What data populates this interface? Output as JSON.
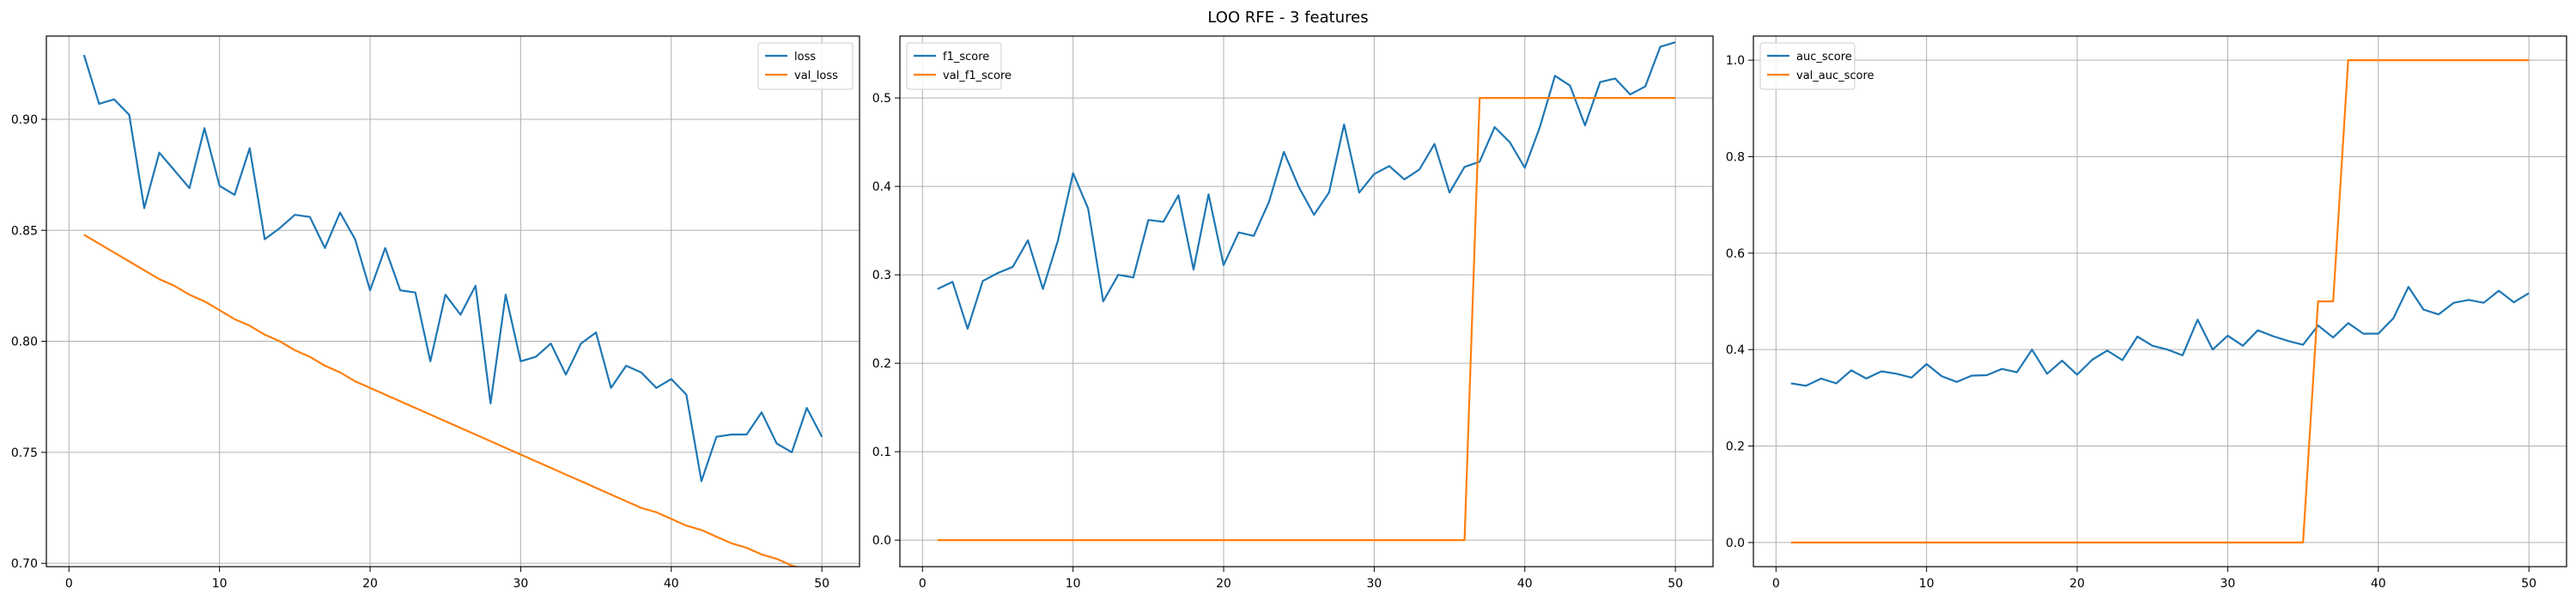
{
  "figure_title": "LOO RFE - 3 features",
  "colors": {
    "train": "#1f77b4",
    "val": "#ff7f0e",
    "grid": "#b0b0b0",
    "axes": "#000000"
  },
  "chart_data": [
    {
      "type": "line",
      "x_ticks": [
        0,
        10,
        20,
        30,
        40,
        50
      ],
      "y_ticks": [
        0.7,
        0.75,
        0.8,
        0.85,
        0.9
      ],
      "y_tick_labels": [
        "0.70",
        "0.75",
        "0.80",
        "0.85",
        "0.90"
      ],
      "xlim": [
        -1.5,
        52.5
      ],
      "ylim": [
        0.6985,
        0.9375
      ],
      "grid": true,
      "legend_position": "top-right",
      "series": [
        {
          "name": "loss",
          "color": "#1f77b4",
          "x": [
            1,
            2,
            3,
            4,
            5,
            6,
            7,
            8,
            9,
            10,
            11,
            12,
            13,
            14,
            15,
            16,
            17,
            18,
            19,
            20,
            21,
            22,
            23,
            24,
            25,
            26,
            27,
            28,
            29,
            30,
            31,
            32,
            33,
            34,
            35,
            36,
            37,
            38,
            39,
            40,
            41,
            42,
            43,
            44,
            45,
            46,
            47,
            48,
            49,
            50
          ],
          "y": [
            0.929,
            0.907,
            0.909,
            0.902,
            0.86,
            0.885,
            0.877,
            0.869,
            0.896,
            0.87,
            0.866,
            0.887,
            0.846,
            0.851,
            0.857,
            0.856,
            0.842,
            0.858,
            0.846,
            0.823,
            0.842,
            0.823,
            0.822,
            0.791,
            0.821,
            0.812,
            0.825,
            0.772,
            0.821,
            0.791,
            0.793,
            0.799,
            0.785,
            0.799,
            0.804,
            0.779,
            0.789,
            0.786,
            0.779,
            0.783,
            0.776,
            0.737,
            0.757,
            0.758,
            0.758,
            0.768,
            0.754,
            0.75,
            0.77,
            0.757
          ]
        },
        {
          "name": "val_loss",
          "color": "#ff7f0e",
          "x": [
            1,
            2,
            3,
            4,
            5,
            6,
            7,
            8,
            9,
            10,
            11,
            12,
            13,
            14,
            15,
            16,
            17,
            18,
            19,
            20,
            21,
            22,
            23,
            24,
            25,
            26,
            27,
            28,
            29,
            30,
            31,
            32,
            33,
            34,
            35,
            36,
            37,
            38,
            39,
            40,
            41,
            42,
            43,
            44,
            45,
            46,
            47,
            48,
            49,
            50
          ],
          "y": [
            0.848,
            0.844,
            0.84,
            0.836,
            0.832,
            0.828,
            0.825,
            0.821,
            0.818,
            0.814,
            0.81,
            0.807,
            0.803,
            0.8,
            0.796,
            0.793,
            0.789,
            0.786,
            0.782,
            0.779,
            0.776,
            0.773,
            0.77,
            0.767,
            0.764,
            0.761,
            0.758,
            0.755,
            0.752,
            0.749,
            0.746,
            0.743,
            0.74,
            0.737,
            0.734,
            0.731,
            0.728,
            0.725,
            0.723,
            0.72,
            0.717,
            0.715,
            0.712,
            0.709,
            0.707,
            0.704,
            0.702,
            0.699,
            0.697,
            0.694
          ]
        }
      ]
    },
    {
      "type": "line",
      "x_ticks": [
        0,
        10,
        20,
        30,
        40,
        50
      ],
      "y_ticks": [
        0.0,
        0.1,
        0.2,
        0.3,
        0.4,
        0.5
      ],
      "y_tick_labels": [
        "0.0",
        "0.1",
        "0.2",
        "0.3",
        "0.4",
        "0.5"
      ],
      "xlim": [
        -1.5,
        52.5
      ],
      "ylim": [
        -0.03,
        0.57
      ],
      "grid": true,
      "legend_position": "top-left",
      "series": [
        {
          "name": "f1_score",
          "color": "#1f77b4",
          "x": [
            1,
            2,
            3,
            4,
            5,
            6,
            7,
            8,
            9,
            10,
            11,
            12,
            13,
            14,
            15,
            16,
            17,
            18,
            19,
            20,
            21,
            22,
            23,
            24,
            25,
            26,
            27,
            28,
            29,
            30,
            31,
            32,
            33,
            34,
            35,
            36,
            37,
            38,
            39,
            40,
            41,
            42,
            43,
            44,
            45,
            46,
            47,
            48,
            49,
            50
          ],
          "y": [
            0.284,
            0.292,
            0.239,
            0.293,
            0.302,
            0.309,
            0.339,
            0.284,
            0.339,
            0.415,
            0.375,
            0.27,
            0.3,
            0.297,
            0.362,
            0.36,
            0.39,
            0.306,
            0.391,
            0.311,
            0.348,
            0.344,
            0.382,
            0.439,
            0.399,
            0.368,
            0.393,
            0.47,
            0.393,
            0.414,
            0.423,
            0.408,
            0.419,
            0.448,
            0.393,
            0.422,
            0.428,
            0.467,
            0.45,
            0.421,
            0.467,
            0.525,
            0.514,
            0.469,
            0.518,
            0.522,
            0.504,
            0.513,
            0.558,
            0.563
          ]
        },
        {
          "name": "val_f1_score",
          "color": "#ff7f0e",
          "x": [
            1,
            2,
            3,
            4,
            5,
            6,
            7,
            8,
            9,
            10,
            11,
            12,
            13,
            14,
            15,
            16,
            17,
            18,
            19,
            20,
            21,
            22,
            23,
            24,
            25,
            26,
            27,
            28,
            29,
            30,
            31,
            32,
            33,
            34,
            35,
            36,
            37,
            38,
            39,
            40,
            41,
            42,
            43,
            44,
            45,
            46,
            47,
            48,
            49,
            50
          ],
          "y": [
            0,
            0,
            0,
            0,
            0,
            0,
            0,
            0,
            0,
            0,
            0,
            0,
            0,
            0,
            0,
            0,
            0,
            0,
            0,
            0,
            0,
            0,
            0,
            0,
            0,
            0,
            0,
            0,
            0,
            0,
            0,
            0,
            0,
            0,
            0,
            0,
            0.5,
            0.5,
            0.5,
            0.5,
            0.5,
            0.5,
            0.5,
            0.5,
            0.5,
            0.5,
            0.5,
            0.5,
            0.5,
            0.5
          ]
        }
      ]
    },
    {
      "type": "line",
      "x_ticks": [
        0,
        10,
        20,
        30,
        40,
        50
      ],
      "y_ticks": [
        0.0,
        0.2,
        0.4,
        0.6,
        0.8,
        1.0
      ],
      "y_tick_labels": [
        "0.0",
        "0.2",
        "0.4",
        "0.6",
        "0.8",
        "1.0"
      ],
      "xlim": [
        -1.5,
        52.5
      ],
      "ylim": [
        -0.05,
        1.05
      ],
      "grid": true,
      "legend_position": "top-left",
      "series": [
        {
          "name": "auc_score",
          "color": "#1f77b4",
          "x": [
            1,
            2,
            3,
            4,
            5,
            6,
            7,
            8,
            9,
            10,
            11,
            12,
            13,
            14,
            15,
            16,
            17,
            18,
            19,
            20,
            21,
            22,
            23,
            24,
            25,
            26,
            27,
            28,
            29,
            30,
            31,
            32,
            33,
            34,
            35,
            36,
            37,
            38,
            39,
            40,
            41,
            42,
            43,
            44,
            45,
            46,
            47,
            48,
            49,
            50
          ],
          "y": [
            0.33,
            0.325,
            0.34,
            0.33,
            0.357,
            0.34,
            0.355,
            0.35,
            0.342,
            0.37,
            0.345,
            0.333,
            0.346,
            0.347,
            0.36,
            0.353,
            0.4,
            0.35,
            0.377,
            0.348,
            0.379,
            0.398,
            0.378,
            0.427,
            0.408,
            0.4,
            0.388,
            0.462,
            0.4,
            0.429,
            0.408,
            0.44,
            0.428,
            0.418,
            0.41,
            0.45,
            0.425,
            0.455,
            0.433,
            0.433,
            0.465,
            0.53,
            0.483,
            0.473,
            0.497,
            0.503,
            0.497,
            0.522,
            0.498,
            0.517
          ]
        },
        {
          "name": "val_auc_score",
          "color": "#ff7f0e",
          "x": [
            1,
            2,
            3,
            4,
            5,
            6,
            7,
            8,
            9,
            10,
            11,
            12,
            13,
            14,
            15,
            16,
            17,
            18,
            19,
            20,
            21,
            22,
            23,
            24,
            25,
            26,
            27,
            28,
            29,
            30,
            31,
            32,
            33,
            34,
            35,
            36,
            37,
            38,
            39,
            40,
            41,
            42,
            43,
            44,
            45,
            46,
            47,
            48,
            49,
            50
          ],
          "y": [
            0,
            0,
            0,
            0,
            0,
            0,
            0,
            0,
            0,
            0,
            0,
            0,
            0,
            0,
            0,
            0,
            0,
            0,
            0,
            0,
            0,
            0,
            0,
            0,
            0,
            0,
            0,
            0,
            0,
            0,
            0,
            0,
            0,
            0,
            0,
            0.5,
            0.5,
            1,
            1,
            1,
            1,
            1,
            1,
            1,
            1,
            1,
            1,
            1,
            1,
            1
          ]
        }
      ]
    }
  ]
}
